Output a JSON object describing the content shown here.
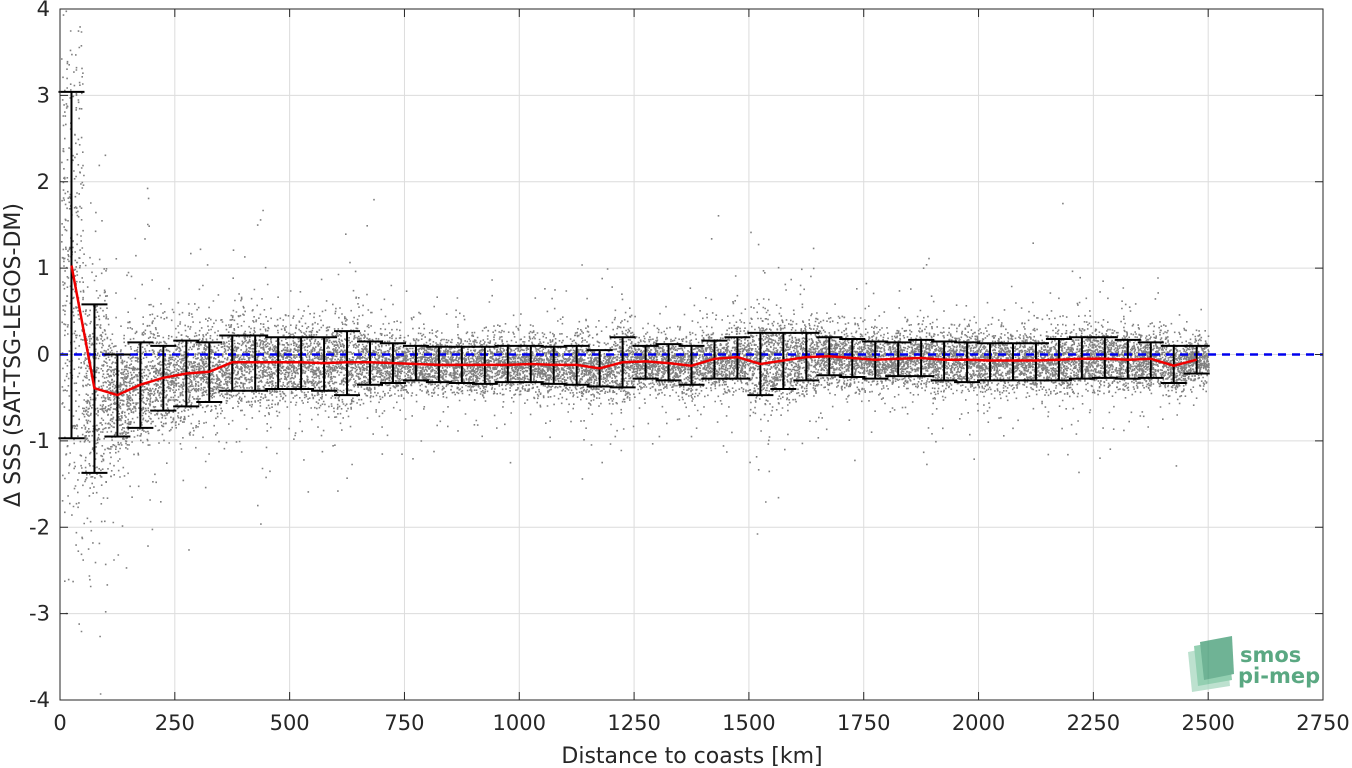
{
  "chart_data": {
    "type": "scatter",
    "title": "",
    "xlabel": "Distance to coasts [km]",
    "ylabel": "Δ SSS (SAT-TSG-LEGOS-DM)",
    "xlim": [
      0,
      2750
    ],
    "ylim": [
      -4,
      4
    ],
    "xticks": [
      0,
      250,
      500,
      750,
      1000,
      1250,
      1500,
      1750,
      2000,
      2250,
      2500,
      2750
    ],
    "yticks": [
      -4,
      -3,
      -2,
      -1,
      0,
      1,
      2,
      3,
      4
    ],
    "xtick_labels": [
      "0",
      "250",
      "500",
      "750",
      "1000",
      "1250",
      "1500",
      "1750",
      "2000",
      "2250",
      "2500",
      "2750"
    ],
    "ytick_labels": [
      "-4",
      "-3",
      "-2",
      "-1",
      "0",
      "1",
      "2",
      "3",
      "4"
    ],
    "grid": true,
    "reference_line": {
      "y": 0,
      "style": "dashed",
      "color": "#0000ee"
    },
    "scatter_color": "#808080",
    "mean_color": "#ee0000",
    "errorbar_color": "#000000",
    "series": [
      {
        "kind": "binned_mean_with_std",
        "x": [
          25,
          75,
          125,
          175,
          225,
          275,
          325,
          375,
          425,
          475,
          525,
          575,
          625,
          675,
          725,
          775,
          825,
          875,
          925,
          975,
          1025,
          1075,
          1125,
          1175,
          1225,
          1275,
          1325,
          1375,
          1425,
          1475,
          1525,
          1575,
          1625,
          1675,
          1725,
          1775,
          1825,
          1875,
          1925,
          1975,
          2025,
          2075,
          2125,
          2175,
          2225,
          2275,
          2325,
          2375,
          2425,
          2475
        ],
        "mean": [
          1.03,
          -0.39,
          -0.47,
          -0.35,
          -0.27,
          -0.22,
          -0.2,
          -0.09,
          -0.09,
          -0.09,
          -0.09,
          -0.1,
          -0.09,
          -0.09,
          -0.1,
          -0.11,
          -0.12,
          -0.12,
          -0.12,
          -0.12,
          -0.11,
          -0.12,
          -0.12,
          -0.16,
          -0.09,
          -0.08,
          -0.1,
          -0.13,
          -0.05,
          -0.03,
          -0.11,
          -0.07,
          -0.03,
          -0.02,
          -0.04,
          -0.06,
          -0.05,
          -0.04,
          -0.06,
          -0.06,
          -0.07,
          -0.07,
          -0.07,
          -0.06,
          -0.05,
          -0.05,
          -0.06,
          -0.05,
          -0.13,
          -0.06
        ],
        "lower": [
          -0.97,
          -1.37,
          -0.95,
          -0.85,
          -0.65,
          -0.6,
          -0.55,
          -0.42,
          -0.42,
          -0.4,
          -0.4,
          -0.42,
          -0.47,
          -0.35,
          -0.33,
          -0.3,
          -0.32,
          -0.33,
          -0.34,
          -0.32,
          -0.32,
          -0.34,
          -0.35,
          -0.37,
          -0.38,
          -0.28,
          -0.3,
          -0.35,
          -0.28,
          -0.28,
          -0.47,
          -0.4,
          -0.3,
          -0.24,
          -0.26,
          -0.28,
          -0.25,
          -0.25,
          -0.3,
          -0.32,
          -0.3,
          -0.3,
          -0.3,
          -0.3,
          -0.28,
          -0.27,
          -0.28,
          -0.27,
          -0.33,
          -0.22
        ],
        "upper": [
          3.04,
          0.58,
          0.0,
          0.14,
          0.1,
          0.16,
          0.14,
          0.22,
          0.22,
          0.2,
          0.2,
          0.2,
          0.27,
          0.15,
          0.13,
          0.1,
          0.09,
          0.09,
          0.09,
          0.1,
          0.1,
          0.09,
          0.1,
          0.05,
          0.2,
          0.1,
          0.12,
          0.1,
          0.16,
          0.2,
          0.25,
          0.25,
          0.25,
          0.2,
          0.18,
          0.15,
          0.14,
          0.17,
          0.15,
          0.14,
          0.13,
          0.13,
          0.13,
          0.18,
          0.2,
          0.2,
          0.17,
          0.14,
          0.1,
          0.1
        ]
      }
    ]
  },
  "logo": {
    "line1": "smos",
    "line2": "pi-mep",
    "color": "#5aa882"
  }
}
